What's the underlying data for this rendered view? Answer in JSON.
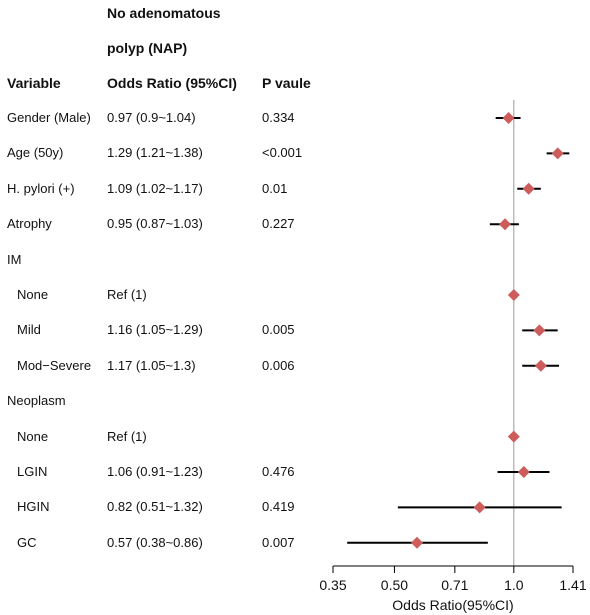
{
  "header": {
    "line1": "No adenomatous",
    "line2": "polyp (NAP)",
    "col_variable": "Variable",
    "col_or": "Odds Ratio (95%CI)",
    "col_p": "P vaule"
  },
  "rows": [
    {
      "label": "Gender (Male)",
      "indent": false,
      "or_text": "0.97 (0.9~1.04)",
      "p": "0.334",
      "or": 0.97,
      "lo": 0.9,
      "hi": 1.04
    },
    {
      "label": "Age (50y)",
      "indent": false,
      "or_text": "1.29 (1.21~1.38)",
      "p": "<0.001",
      "or": 1.29,
      "lo": 1.21,
      "hi": 1.38
    },
    {
      "label": "H. pylori (+)",
      "indent": false,
      "or_text": "1.09 (1.02~1.17)",
      "p": "0.01",
      "or": 1.09,
      "lo": 1.02,
      "hi": 1.17
    },
    {
      "label": "Atrophy",
      "indent": false,
      "or_text": "0.95 (0.87~1.03)",
      "p": "0.227",
      "or": 0.95,
      "lo": 0.87,
      "hi": 1.03
    },
    {
      "label": "IM",
      "indent": false,
      "or_text": "",
      "p": "",
      "or": null,
      "lo": null,
      "hi": null
    },
    {
      "label": "None",
      "indent": true,
      "or_text": "Ref (1)",
      "p": "",
      "or": 1.0,
      "lo": null,
      "hi": null
    },
    {
      "label": "Mild",
      "indent": true,
      "or_text": "1.16 (1.05~1.29)",
      "p": "0.005",
      "or": 1.16,
      "lo": 1.05,
      "hi": 1.29
    },
    {
      "label": "Mod−Severe",
      "indent": true,
      "or_text": "1.17 (1.05~1.3)",
      "p": "0.006",
      "or": 1.17,
      "lo": 1.05,
      "hi": 1.3
    },
    {
      "label": "Neoplasm",
      "indent": false,
      "or_text": "",
      "p": "",
      "or": null,
      "lo": null,
      "hi": null
    },
    {
      "label": "None",
      "indent": true,
      "or_text": "Ref (1)",
      "p": "",
      "or": 1.0,
      "lo": null,
      "hi": null
    },
    {
      "label": "LGIN",
      "indent": true,
      "or_text": "1.06 (0.91~1.23)",
      "p": "0.476",
      "or": 1.06,
      "lo": 0.91,
      "hi": 1.23
    },
    {
      "label": "HGIN",
      "indent": true,
      "or_text": "0.82 (0.51~1.32)",
      "p": "0.419",
      "or": 0.82,
      "lo": 0.51,
      "hi": 1.32
    },
    {
      "label": "GC",
      "indent": true,
      "or_text": "0.57 (0.38~0.86)",
      "p": "0.007",
      "or": 0.57,
      "lo": 0.38,
      "hi": 0.86
    }
  ],
  "chart_data": {
    "type": "scatter",
    "title": "",
    "xlabel": "Odds Ratio(95%CI)",
    "x_scale": "log",
    "x_ticks": [
      0.35,
      0.5,
      0.71,
      1.0,
      1.41
    ],
    "x_tick_labels": [
      "0.35",
      "0.50",
      "0.71",
      "1.0",
      "1.41"
    ],
    "xlim": [
      0.35,
      1.41
    ],
    "reference_line": 1.0,
    "marker_color": "#cd5c5c",
    "ci_color": "#000000",
    "ref_line_color": "#9a9a9a"
  }
}
